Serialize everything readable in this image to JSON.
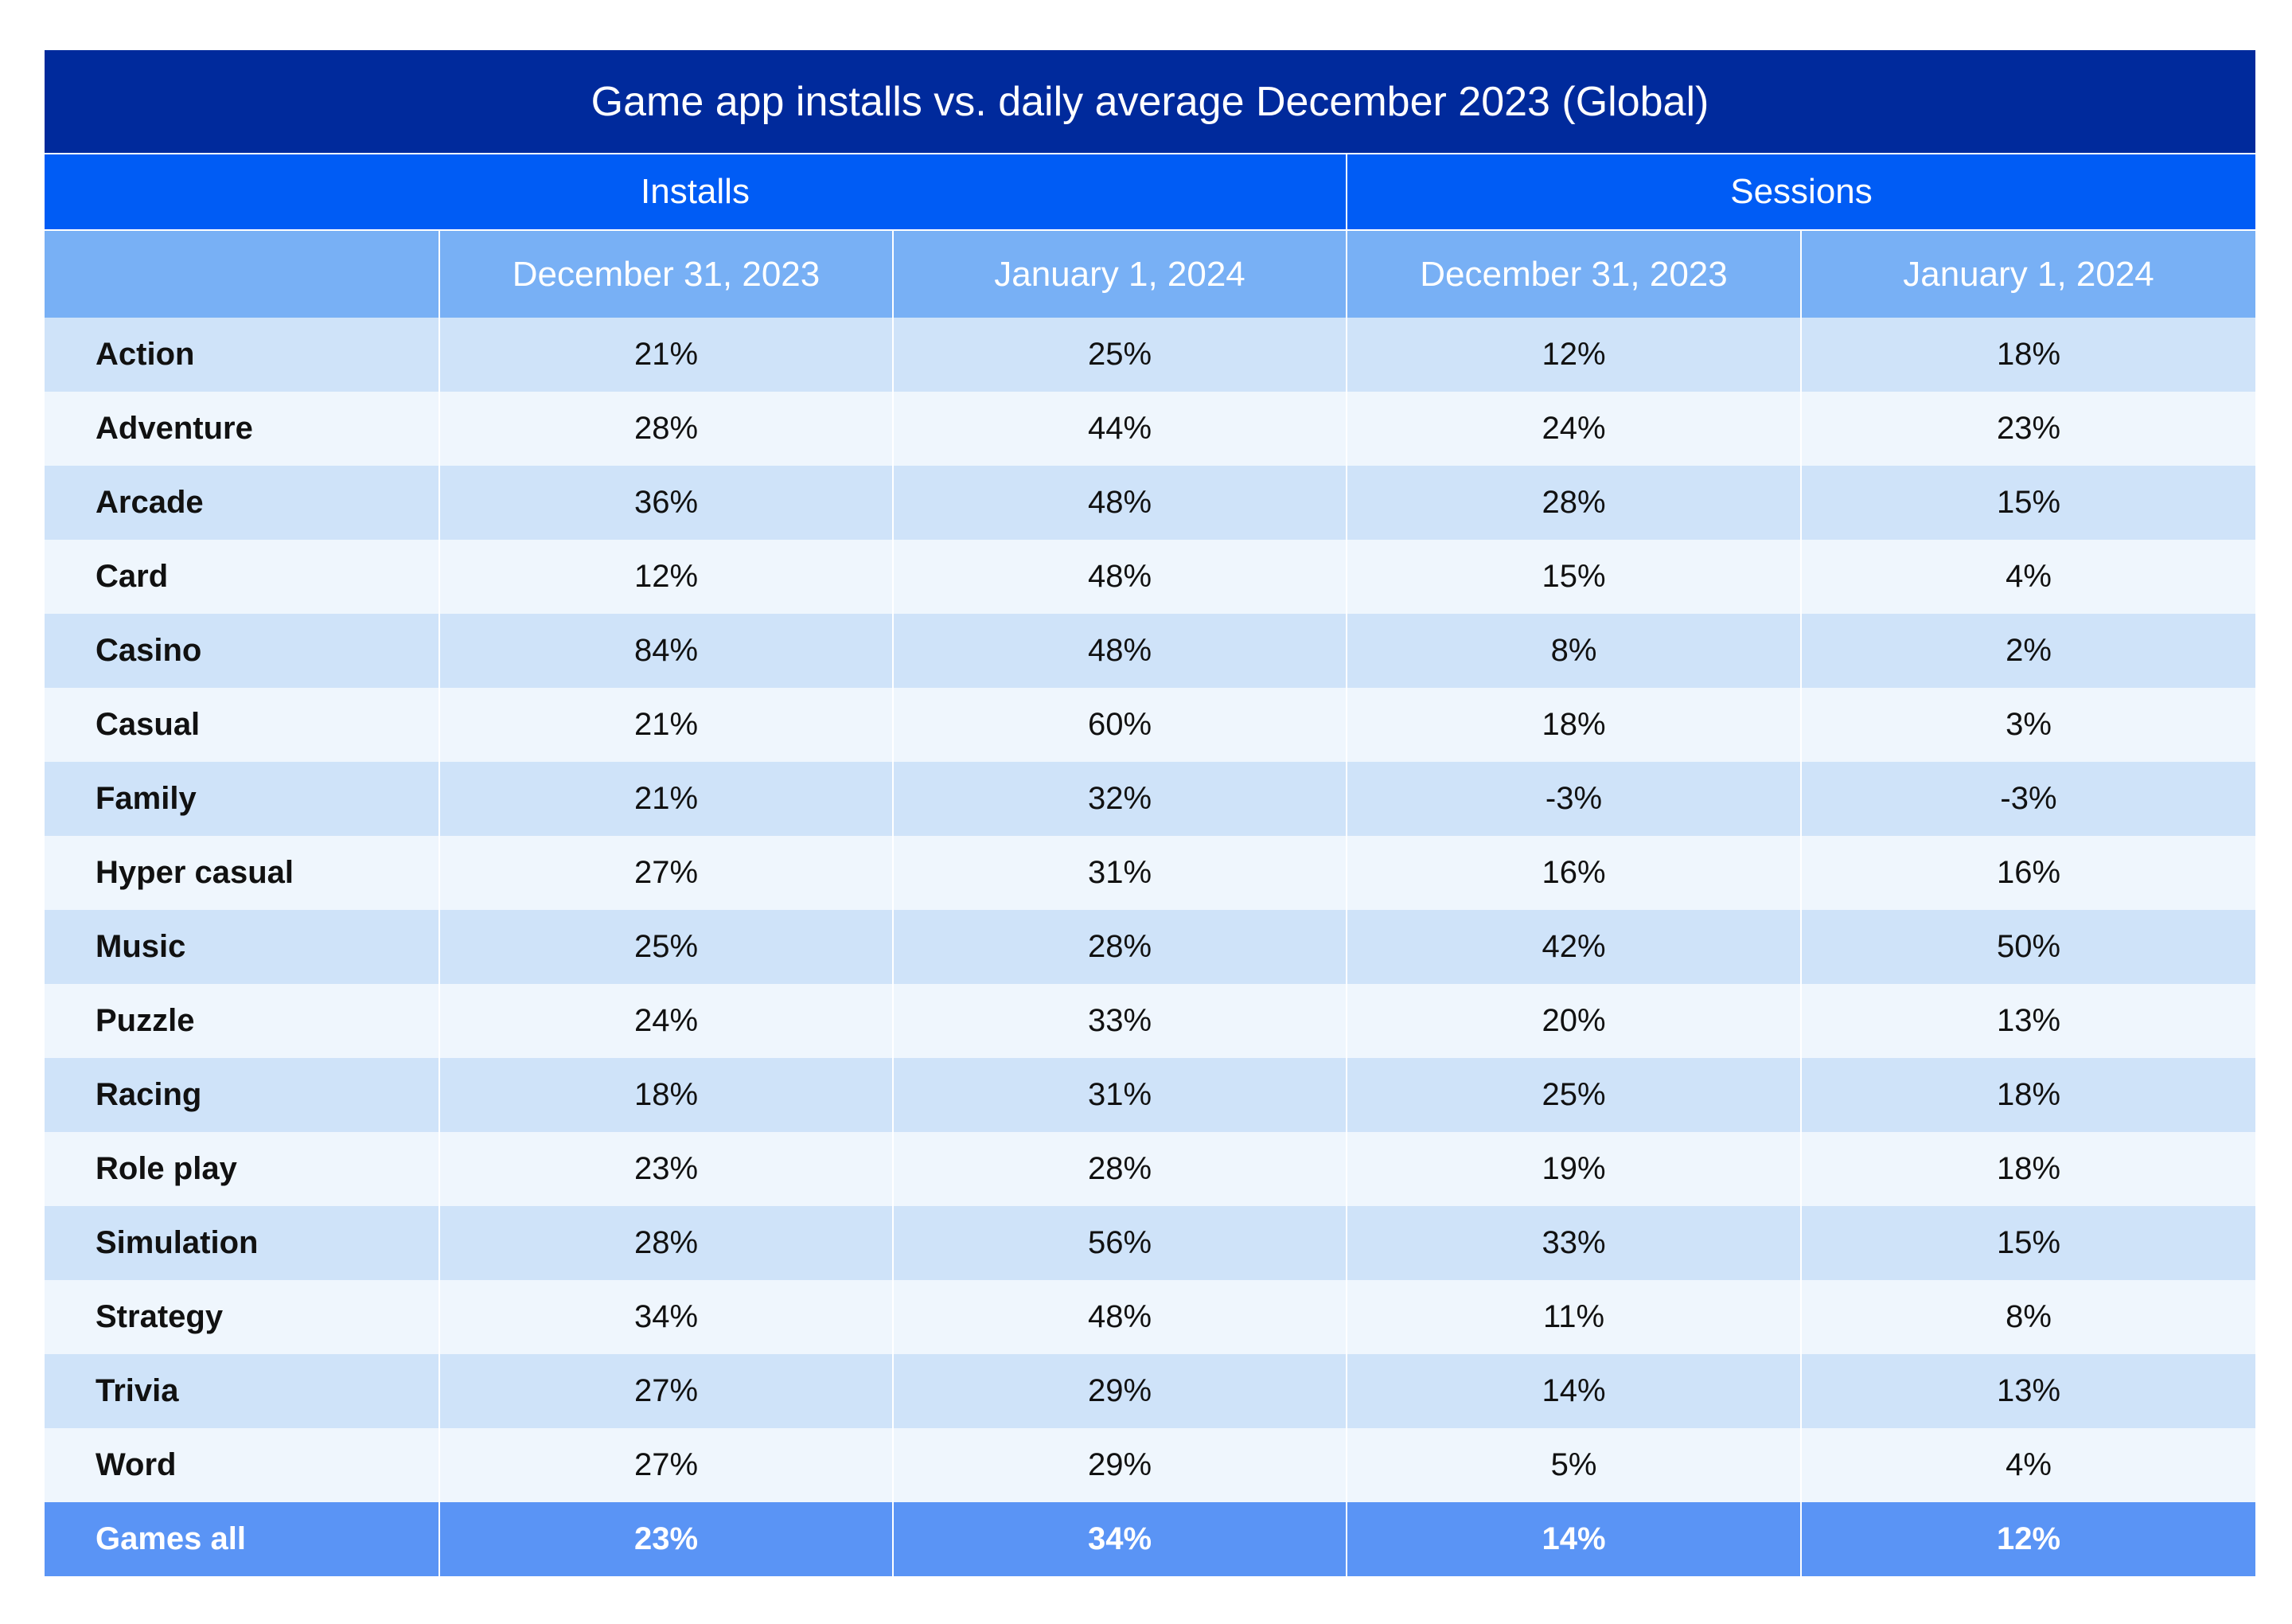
{
  "chart_data": {
    "type": "table",
    "title": "Game app installs vs. daily average December 2023 (Global)",
    "groups": [
      "Installs",
      "Sessions"
    ],
    "columns": [
      "December 31, 2023",
      "January 1, 2024",
      "December 31, 2023",
      "January 1, 2024"
    ],
    "rows": [
      {
        "category": "Action",
        "values": [
          "21%",
          "25%",
          "12%",
          "18%"
        ]
      },
      {
        "category": "Adventure",
        "values": [
          "28%",
          "44%",
          "24%",
          "23%"
        ]
      },
      {
        "category": "Arcade",
        "values": [
          "36%",
          "48%",
          "28%",
          "15%"
        ]
      },
      {
        "category": "Card",
        "values": [
          "12%",
          "48%",
          "15%",
          "4%"
        ]
      },
      {
        "category": "Casino",
        "values": [
          "84%",
          "48%",
          "8%",
          "2%"
        ]
      },
      {
        "category": "Casual",
        "values": [
          "21%",
          "60%",
          "18%",
          "3%"
        ]
      },
      {
        "category": "Family",
        "values": [
          "21%",
          "32%",
          "-3%",
          "-3%"
        ]
      },
      {
        "category": "Hyper casual",
        "values": [
          "27%",
          "31%",
          "16%",
          "16%"
        ]
      },
      {
        "category": "Music",
        "values": [
          "25%",
          "28%",
          "42%",
          "50%"
        ]
      },
      {
        "category": "Puzzle",
        "values": [
          "24%",
          "33%",
          "20%",
          "13%"
        ]
      },
      {
        "category": "Racing",
        "values": [
          "18%",
          "31%",
          "25%",
          "18%"
        ]
      },
      {
        "category": "Role play",
        "values": [
          "23%",
          "28%",
          "19%",
          "18%"
        ]
      },
      {
        "category": "Simulation",
        "values": [
          "28%",
          "56%",
          "33%",
          "15%"
        ]
      },
      {
        "category": "Strategy",
        "values": [
          "34%",
          "48%",
          "11%",
          "8%"
        ]
      },
      {
        "category": "Trivia",
        "values": [
          "27%",
          "29%",
          "14%",
          "13%"
        ]
      },
      {
        "category": "Word",
        "values": [
          "27%",
          "29%",
          "5%",
          "4%"
        ]
      }
    ],
    "total": {
      "category": "Games all",
      "values": [
        "23%",
        "34%",
        "14%",
        "12%"
      ]
    },
    "colors": {
      "title_bg": "#002a9c",
      "group_bg": "#005cf5",
      "date_bg": "#78b0f5",
      "row_dark": "#cfe3f9",
      "row_light": "#eff6fd",
      "total_bg": "#5a94f5"
    }
  }
}
